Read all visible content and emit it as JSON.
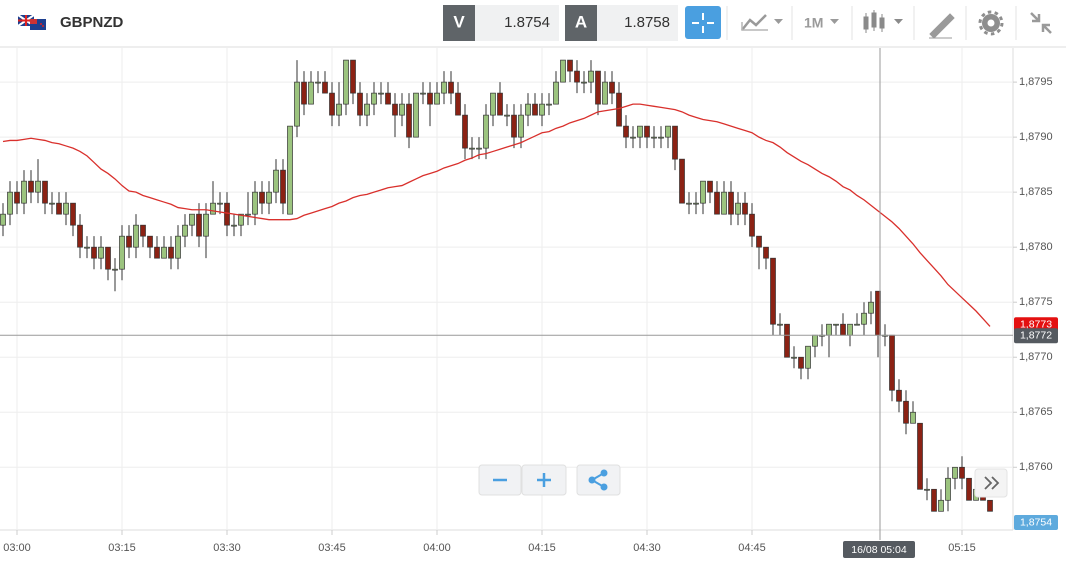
{
  "header": {
    "symbol": "GBPNZD",
    "bid_label": "V",
    "bid": 1.8754,
    "ask_label": "A",
    "ask": 1.8758,
    "timeframe": "1M"
  },
  "chart_data": {
    "type": "candlestick",
    "categories": [
      null,
      null,
      "03:00",
      null,
      null,
      null,
      null,
      null,
      null,
      null,
      null,
      null,
      null,
      null,
      null,
      null,
      null,
      "03:15",
      null,
      null,
      null,
      null,
      null,
      null,
      null,
      null,
      null,
      null,
      null,
      null,
      null,
      null,
      "03:30",
      null,
      null,
      null,
      null,
      null,
      null,
      null,
      null,
      null,
      null,
      null,
      null,
      null,
      null,
      "03:45",
      null,
      null,
      null,
      null,
      null,
      null,
      null,
      null,
      null,
      null,
      null,
      null,
      null,
      null,
      "04:00",
      null,
      null,
      null,
      null,
      null,
      null,
      null,
      null,
      null,
      null,
      null,
      null,
      null,
      null,
      "04:15",
      null,
      null,
      null,
      null,
      null,
      null,
      null,
      null,
      null,
      null,
      null,
      null,
      null,
      null,
      "04:30",
      null,
      null,
      null,
      null,
      null,
      null,
      null,
      null,
      null,
      null,
      null,
      null,
      null,
      null,
      "04:45",
      null,
      null,
      null,
      null,
      null,
      null,
      null,
      null,
      null,
      null,
      null,
      null,
      null,
      null,
      null,
      null,
      null,
      null,
      null,
      null,
      null,
      null,
      null,
      null,
      null,
      null,
      null,
      null,
      null,
      "05:15",
      null,
      null,
      null,
      null
    ],
    "candles": [
      [
        1.8782,
        1.8784,
        1.8781,
        1.8783
      ],
      [
        1.8783,
        1.8786,
        1.8782,
        1.8785
      ],
      [
        1.8785,
        1.8786,
        1.8783,
        1.8784
      ],
      [
        1.8784,
        1.8787,
        1.8783,
        1.8786
      ],
      [
        1.8786,
        1.8787,
        1.8784,
        1.8785
      ],
      [
        1.8785,
        1.8788,
        1.8784,
        1.8786
      ],
      [
        1.8786,
        1.8786,
        1.8783,
        1.8784
      ],
      [
        1.8784,
        1.8785,
        1.8783,
        1.8784
      ],
      [
        1.8784,
        1.8785,
        1.8783,
        1.8783
      ],
      [
        1.8783,
        1.8785,
        1.8782,
        1.8784
      ],
      [
        1.8784,
        1.8784,
        1.8781,
        1.8782
      ],
      [
        1.8782,
        1.8783,
        1.8779,
        1.878
      ],
      [
        1.878,
        1.8781,
        1.8779,
        1.878
      ],
      [
        1.878,
        1.8781,
        1.8778,
        1.8779
      ],
      [
        1.8779,
        1.8781,
        1.8778,
        1.878
      ],
      [
        1.878,
        1.878,
        1.8777,
        1.8778
      ],
      [
        1.8778,
        1.8779,
        1.8776,
        1.8778
      ],
      [
        1.8778,
        1.8782,
        1.8777,
        1.8781
      ],
      [
        1.8781,
        1.8782,
        1.8779,
        1.878
      ],
      [
        1.878,
        1.8783,
        1.8779,
        1.8782
      ],
      [
        1.8782,
        1.8782,
        1.878,
        1.8781
      ],
      [
        1.8781,
        1.8781,
        1.8779,
        1.878
      ],
      [
        1.878,
        1.8781,
        1.8779,
        1.8779
      ],
      [
        1.8779,
        1.8781,
        1.8779,
        1.878
      ],
      [
        1.878,
        1.8781,
        1.8778,
        1.8779
      ],
      [
        1.8779,
        1.8782,
        1.8778,
        1.8781
      ],
      [
        1.8781,
        1.8783,
        1.878,
        1.8782
      ],
      [
        1.8782,
        1.8783,
        1.8781,
        1.8783
      ],
      [
        1.8783,
        1.8784,
        1.878,
        1.8781
      ],
      [
        1.8781,
        1.8784,
        1.8779,
        1.8783
      ],
      [
        1.8783,
        1.8786,
        1.8783,
        1.8784
      ],
      [
        1.8784,
        1.8785,
        1.8783,
        1.8784
      ],
      [
        1.8784,
        1.8785,
        1.8781,
        1.8782
      ],
      [
        1.8782,
        1.8783,
        1.8781,
        1.8782
      ],
      [
        1.8782,
        1.8783,
        1.8781,
        1.8783
      ],
      [
        1.8783,
        1.8785,
        1.8782,
        1.8783
      ],
      [
        1.8783,
        1.8786,
        1.8782,
        1.8785
      ],
      [
        1.8785,
        1.8786,
        1.8783,
        1.8784
      ],
      [
        1.8784,
        1.8786,
        1.8783,
        1.8785
      ],
      [
        1.8785,
        1.8788,
        1.8784,
        1.8787
      ],
      [
        1.8787,
        1.8788,
        1.8783,
        1.8784
      ],
      [
        1.8783,
        1.8791,
        1.8783,
        1.8791
      ],
      [
        1.8791,
        1.8797,
        1.879,
        1.8795
      ],
      [
        1.8795,
        1.8796,
        1.8792,
        1.8793
      ],
      [
        1.8793,
        1.8796,
        1.8793,
        1.8795
      ],
      [
        1.8795,
        1.8796,
        1.8794,
        1.8795
      ],
      [
        1.8795,
        1.8796,
        1.8794,
        1.8794
      ],
      [
        1.8794,
        1.8795,
        1.8791,
        1.8792
      ],
      [
        1.8792,
        1.8795,
        1.8791,
        1.8793
      ],
      [
        1.8793,
        1.8797,
        1.8792,
        1.8797
      ],
      [
        1.8797,
        1.8797,
        1.8793,
        1.8794
      ],
      [
        1.8794,
        1.8795,
        1.8791,
        1.8792
      ],
      [
        1.8792,
        1.8794,
        1.8791,
        1.8793
      ],
      [
        1.8793,
        1.8795,
        1.8792,
        1.8794
      ],
      [
        1.8794,
        1.8795,
        1.8793,
        1.8794
      ],
      [
        1.8794,
        1.8795,
        1.8793,
        1.8793
      ],
      [
        1.8793,
        1.8794,
        1.879,
        1.8792
      ],
      [
        1.8792,
        1.8794,
        1.8791,
        1.8793
      ],
      [
        1.8793,
        1.8794,
        1.8789,
        1.879
      ],
      [
        1.879,
        1.8794,
        1.879,
        1.8794
      ],
      [
        1.8794,
        1.8795,
        1.8793,
        1.8794
      ],
      [
        1.8794,
        1.8795,
        1.8791,
        1.8793
      ],
      [
        1.8793,
        1.8795,
        1.8793,
        1.8794
      ],
      [
        1.8794,
        1.8796,
        1.8793,
        1.8795
      ],
      [
        1.8795,
        1.8796,
        1.8793,
        1.8794
      ],
      [
        1.8794,
        1.8795,
        1.8792,
        1.8792
      ],
      [
        1.8792,
        1.8793,
        1.8788,
        1.8789
      ],
      [
        1.8789,
        1.879,
        1.8788,
        1.8789
      ],
      [
        1.8789,
        1.879,
        1.8788,
        1.8789
      ],
      [
        1.8789,
        1.8793,
        1.8788,
        1.8792
      ],
      [
        1.8792,
        1.8794,
        1.8791,
        1.8794
      ],
      [
        1.8794,
        1.8795,
        1.8792,
        1.8792
      ],
      [
        1.8792,
        1.8793,
        1.8791,
        1.8792
      ],
      [
        1.8792,
        1.8793,
        1.8789,
        1.879
      ],
      [
        1.879,
        1.8793,
        1.8789,
        1.8792
      ],
      [
        1.8792,
        1.8794,
        1.8791,
        1.8793
      ],
      [
        1.8793,
        1.8794,
        1.8792,
        1.8792
      ],
      [
        1.8792,
        1.8794,
        1.8791,
        1.8793
      ],
      [
        1.8793,
        1.8794,
        1.8792,
        1.8793
      ],
      [
        1.8793,
        1.8796,
        1.8793,
        1.8795
      ],
      [
        1.8795,
        1.8797,
        1.8795,
        1.8797
      ],
      [
        1.8797,
        1.8797,
        1.8795,
        1.8796
      ],
      [
        1.8796,
        1.8797,
        1.8794,
        1.8795
      ],
      [
        1.8795,
        1.8796,
        1.8794,
        1.8795
      ],
      [
        1.8795,
        1.8797,
        1.8794,
        1.8796
      ],
      [
        1.8796,
        1.8796,
        1.8792,
        1.8793
      ],
      [
        1.8793,
        1.8796,
        1.8793,
        1.8795
      ],
      [
        1.8795,
        1.8796,
        1.8793,
        1.8794
      ],
      [
        1.8794,
        1.8795,
        1.8791,
        1.8791
      ],
      [
        1.8791,
        1.8792,
        1.8789,
        1.879
      ],
      [
        1.879,
        1.8791,
        1.8789,
        1.879
      ],
      [
        1.879,
        1.8791,
        1.8789,
        1.8791
      ],
      [
        1.8791,
        1.8791,
        1.8789,
        1.879
      ],
      [
        1.879,
        1.8791,
        1.8789,
        1.879
      ],
      [
        1.879,
        1.8791,
        1.8789,
        1.879
      ],
      [
        1.879,
        1.8791,
        1.8789,
        1.8791
      ],
      [
        1.8791,
        1.8791,
        1.8787,
        1.8788
      ],
      [
        1.8788,
        1.8788,
        1.8784,
        1.8784
      ],
      [
        1.8784,
        1.8785,
        1.8783,
        1.8784
      ],
      [
        1.8784,
        1.8785,
        1.8783,
        1.8784
      ],
      [
        1.8784,
        1.8786,
        1.8783,
        1.8786
      ],
      [
        1.8786,
        1.8786,
        1.8784,
        1.8785
      ],
      [
        1.8785,
        1.8786,
        1.8783,
        1.8783
      ],
      [
        1.8783,
        1.8786,
        1.8783,
        1.8785
      ],
      [
        1.8785,
        1.8786,
        1.8782,
        1.8783
      ],
      [
        1.8783,
        1.8785,
        1.8782,
        1.8784
      ],
      [
        1.8784,
        1.8785,
        1.8782,
        1.8783
      ],
      [
        1.8783,
        1.8784,
        1.878,
        1.8781
      ],
      [
        1.8781,
        1.8781,
        1.8778,
        1.878
      ],
      [
        1.878,
        1.878,
        1.8778,
        1.8779
      ],
      [
        1.8779,
        1.8779,
        1.8772,
        1.8773
      ],
      [
        1.8773,
        1.8774,
        1.8772,
        1.8773
      ],
      [
        1.8773,
        1.8773,
        1.877,
        1.877
      ],
      [
        1.877,
        1.8771,
        1.8769,
        1.877
      ],
      [
        1.877,
        1.877,
        1.8768,
        1.8769
      ],
      [
        1.8769,
        1.8771,
        1.8768,
        1.8771
      ],
      [
        1.8771,
        1.8772,
        1.877,
        1.8772
      ],
      [
        1.8772,
        1.8773,
        1.8771,
        1.8772
      ],
      [
        1.8772,
        1.8773,
        1.877,
        1.8773
      ],
      [
        1.8773,
        1.8773,
        1.8772,
        1.8773
      ],
      [
        1.8773,
        1.8774,
        1.8772,
        1.8772
      ],
      [
        1.8772,
        1.8773,
        1.8771,
        1.8773
      ],
      [
        1.8773,
        1.8774,
        1.8773,
        1.8773
      ],
      [
        1.8773,
        1.8775,
        1.8772,
        1.8774
      ],
      [
        1.8774,
        1.8776,
        1.8773,
        1.8775
      ],
      [
        1.8776,
        1.8776,
        1.877,
        1.8772
      ],
      [
        1.8772,
        1.8773,
        1.8771,
        1.8772
      ],
      [
        1.8772,
        1.8772,
        1.8766,
        1.8767
      ],
      [
        1.8767,
        1.8768,
        1.8765,
        1.8766
      ],
      [
        1.8766,
        1.8767,
        1.8763,
        1.8764
      ],
      [
        1.8764,
        1.8766,
        1.8764,
        1.8765
      ],
      [
        1.8764,
        1.8764,
        1.8758,
        1.8758
      ],
      [
        1.8758,
        1.8759,
        1.8757,
        1.8758
      ],
      [
        1.8758,
        1.8758,
        1.8756,
        1.8756
      ],
      [
        1.8756,
        1.8758,
        1.8756,
        1.8757
      ],
      [
        1.8757,
        1.876,
        1.8756,
        1.8759
      ],
      [
        1.8759,
        1.876,
        1.8758,
        1.876
      ],
      [
        1.876,
        1.8761,
        1.8758,
        1.8759
      ],
      [
        1.8759,
        1.8759,
        1.8757,
        1.8757
      ],
      [
        1.8757,
        1.8758,
        1.8757,
        1.8758
      ],
      [
        1.8758,
        1.8758,
        1.8757,
        1.8757
      ],
      [
        1.8757,
        1.8757,
        1.8756,
        1.8756
      ]
    ],
    "up_color": "#9cc47f",
    "down_color": "#8b2214",
    "series": [
      {
        "color": "#d9302c",
        "values": [
          1.87896,
          1.87897,
          1.87897,
          1.87898,
          1.87899,
          1.87898,
          1.87897,
          1.87895,
          1.87894,
          1.87892,
          1.8789,
          1.87887,
          1.87883,
          1.87877,
          1.87871,
          1.87867,
          1.87862,
          1.87856,
          1.87851,
          1.8785,
          1.87847,
          1.87845,
          1.87843,
          1.87841,
          1.87839,
          1.87836,
          1.87835,
          1.87834,
          1.87834,
          1.87834,
          1.87833,
          1.87832,
          1.87831,
          1.8783,
          1.87829,
          1.87828,
          1.87827,
          1.87826,
          1.87825,
          1.87825,
          1.87825,
          1.87825,
          1.87826,
          1.87829,
          1.87831,
          1.87833,
          1.87835,
          1.87837,
          1.8784,
          1.87842,
          1.87845,
          1.87847,
          1.87848,
          1.8785,
          1.87852,
          1.87854,
          1.87855,
          1.87856,
          1.87859,
          1.87862,
          1.87865,
          1.87867,
          1.87869,
          1.87872,
          1.87874,
          1.87876,
          1.87879,
          1.87881,
          1.87884,
          1.87885,
          1.87887,
          1.87889,
          1.87891,
          1.87893,
          1.87895,
          1.87898,
          1.87901,
          1.87904,
          1.87905,
          1.87908,
          1.8791,
          1.87913,
          1.87915,
          1.87917,
          1.8792,
          1.87923,
          1.87924,
          1.87925,
          1.87926,
          1.87928,
          1.8793,
          1.8793,
          1.87929,
          1.87928,
          1.87927,
          1.87926,
          1.87925,
          1.87923,
          1.8792,
          1.87918,
          1.87916,
          1.87915,
          1.87914,
          1.87912,
          1.8791,
          1.87908,
          1.87906,
          1.87904,
          1.879,
          1.87897,
          1.87895,
          1.87891,
          1.87886,
          1.87882,
          1.87878,
          1.87875,
          1.87871,
          1.87867,
          1.87864,
          1.8786,
          1.87855,
          1.87852,
          1.87847,
          1.87843,
          1.87838,
          1.87833,
          1.87828,
          1.87823,
          1.87817,
          1.8781,
          1.87803,
          1.87795,
          1.87788,
          1.87781,
          1.87774,
          1.87766,
          1.8776,
          1.87754,
          1.87748,
          1.87742,
          1.87735,
          1.87728
        ]
      }
    ],
    "ylim": [
      1.87543,
      1.87981
    ],
    "yticks": [
      {
        "value": 1.876,
        "label": "1,8760"
      },
      {
        "value": 1.8765,
        "label": "1,8765"
      },
      {
        "value": 1.877,
        "label": "1,8770"
      },
      {
        "value": 1.8775,
        "label": "1,8775"
      },
      {
        "value": 1.878,
        "label": "1,8780"
      },
      {
        "value": 1.8785,
        "label": "1,8785"
      },
      {
        "value": 1.879,
        "label": "1,8790"
      },
      {
        "value": 1.8795,
        "label": "1,8795"
      }
    ],
    "grid": true,
    "price_labels": [
      {
        "value": 1.8773,
        "label": "1,8773",
        "color": "#e41010"
      },
      {
        "value": 1.8772,
        "label": "1,8772",
        "color": "#555a60"
      },
      {
        "value": 1.8754,
        "label": "1,8754",
        "color": "#5eaadd"
      }
    ],
    "crosshair_time": "16/08 05:04"
  }
}
